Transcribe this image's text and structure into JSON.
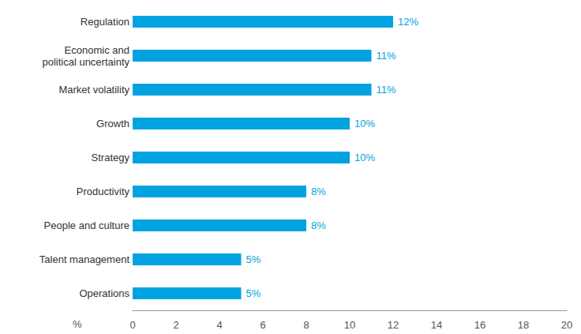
{
  "chart_data": {
    "type": "bar",
    "orientation": "horizontal",
    "categories": [
      "Regulation",
      "Economic and political uncertainty",
      "Market volatility",
      "Growth",
      "Strategy",
      "Productivity",
      "People and culture",
      "Talent management",
      "Operations"
    ],
    "values": [
      12,
      11,
      11,
      10,
      10,
      8,
      8,
      5,
      5
    ],
    "value_labels": [
      "12%",
      "11%",
      "11%",
      "10%",
      "10%",
      "8%",
      "8%",
      "5%",
      "5%"
    ],
    "data_labels": true,
    "color": "#00a3e0",
    "x_label": "%",
    "xlim": [
      0,
      20
    ],
    "xticks": [
      0,
      2,
      4,
      6,
      8,
      10,
      12,
      14,
      16,
      18,
      20
    ],
    "grid": false
  }
}
